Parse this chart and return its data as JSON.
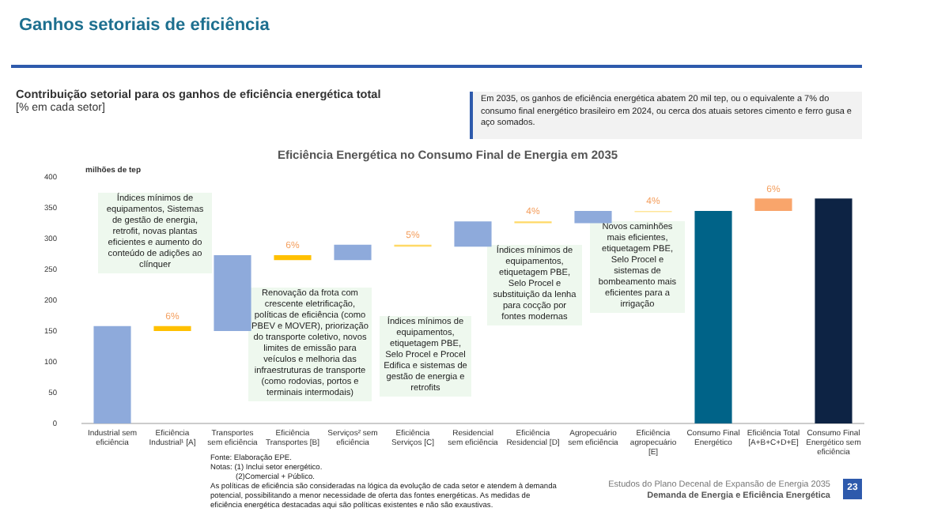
{
  "chart_data": {
    "type": "bar",
    "title": "Eficiência Energética no Consumo Final de Energia em 2035",
    "subtitle": "Contribuição setorial para os ganhos de eficiência energética total",
    "ylabel": "milhões de tep",
    "categories": [
      "Industrial sem eficiência",
      "Eficiência Industrial¹ [A]",
      "Transportes sem eficiência",
      "Eficiência Transportes [B]",
      "Serviços² sem eficiência",
      "Eficiência Serviços [C]",
      "Residencial sem eficiência",
      "Eficiência Residencial [D]",
      "Agropecuário sem eficiência",
      "Eficiência agropecuário [E]",
      "Consumo Final Energético",
      "Eficiência Total [A+B+C+D+E]",
      "Consumo Final Energético sem eficiência"
    ],
    "values": [
      158,
      8,
      123,
      8,
      25,
      3,
      41,
      3,
      20,
      2,
      345,
      20,
      365
    ],
    "base": [
      0,
      150,
      150,
      265,
      265,
      287,
      287,
      325,
      325,
      343,
      0,
      345,
      0
    ],
    "colors": [
      "#8eaadb",
      "#ffc000",
      "#8eaadb",
      "#ffc000",
      "#8eaadb",
      "#ffd966",
      "#8eaadb",
      "#ffd966",
      "#8eaadb",
      "#ffe699",
      "#006388",
      "#f9a56b",
      "#0d2344"
    ],
    "ylim": [
      0,
      400
    ],
    "yticks": [
      0,
      50,
      100,
      150,
      200,
      250,
      300,
      350,
      400
    ],
    "annotations": [
      "Ganhos setoriais de eficiência",
      "[% em cada setor]",
      "Em 2035, os ganhos de eficiência energética abatem 20 mil tep, ou o equivalente a 7% do consumo final energético brasileiro em 2024, ou cerca dos atuais setores cimento e ferro gusa e aço somados.",
      "Fonte: Elaboração EPE.",
      "Notas: (1) Inclui setor energético.",
      "(2)Comercial + Público.",
      "As políticas de eficiência são consideradas na lógica da evolução de cada setor e atendem à demanda potencial, possibilitando a menor necessidade de oferta das fontes energéticas. As medidas de eficiência energética destacadas aqui são políticas existentes e não são exaustivas.",
      "Estudos do Plano Decenal de Expansão de Energia 2035",
      "Demanda de Energia e Eficiência Energética",
      "23",
      "Índices mínimos de equipamentos, Sistemas de gestão de energia, retrofit, novas plantas eficientes e aumento do conteúdo de adições ao clínquer",
      "Renovação da frota com crescente eletrificação, políticas de eficiência (como PBEV e MOVER), priorização do transporte coletivo, novos limites de emissão para veículos e melhoria das infraestruturas de transporte (como rodovias, portos e terminais intermodais)",
      "Índices mínimos de equipamentos, etiquetagem PBE, Selo Procel e Procel Edifica e sistemas de gestão de energia e retrofits",
      "Índices mínimos de equipamentos, etiquetagem PBE, Selo Procel e substituição da lenha para cocção por fontes modernas",
      "Novos caminhões mais eficientes, etiquetagem PBE, Selo Procel e sistemas de bombeamento mais eficientes para a irrigação",
      {
        "text": "6%",
        "x": "Eficiência Industrial¹ [A]",
        "y": 158
      },
      {
        "text": "6%",
        "x": "Eficiência Transportes [B]",
        "y": 273
      },
      {
        "text": "5%",
        "x": "Eficiência Serviços [C]",
        "y": 290
      },
      {
        "text": "4%",
        "x": "Eficiência Residencial [D]",
        "y": 328
      },
      {
        "text": "4%",
        "x": "Eficiência agropecuário [E]",
        "y": 345
      },
      {
        "text": "6%",
        "x": "Eficiência Total [A+B+C+D+E]",
        "y": 365
      }
    ]
  }
}
